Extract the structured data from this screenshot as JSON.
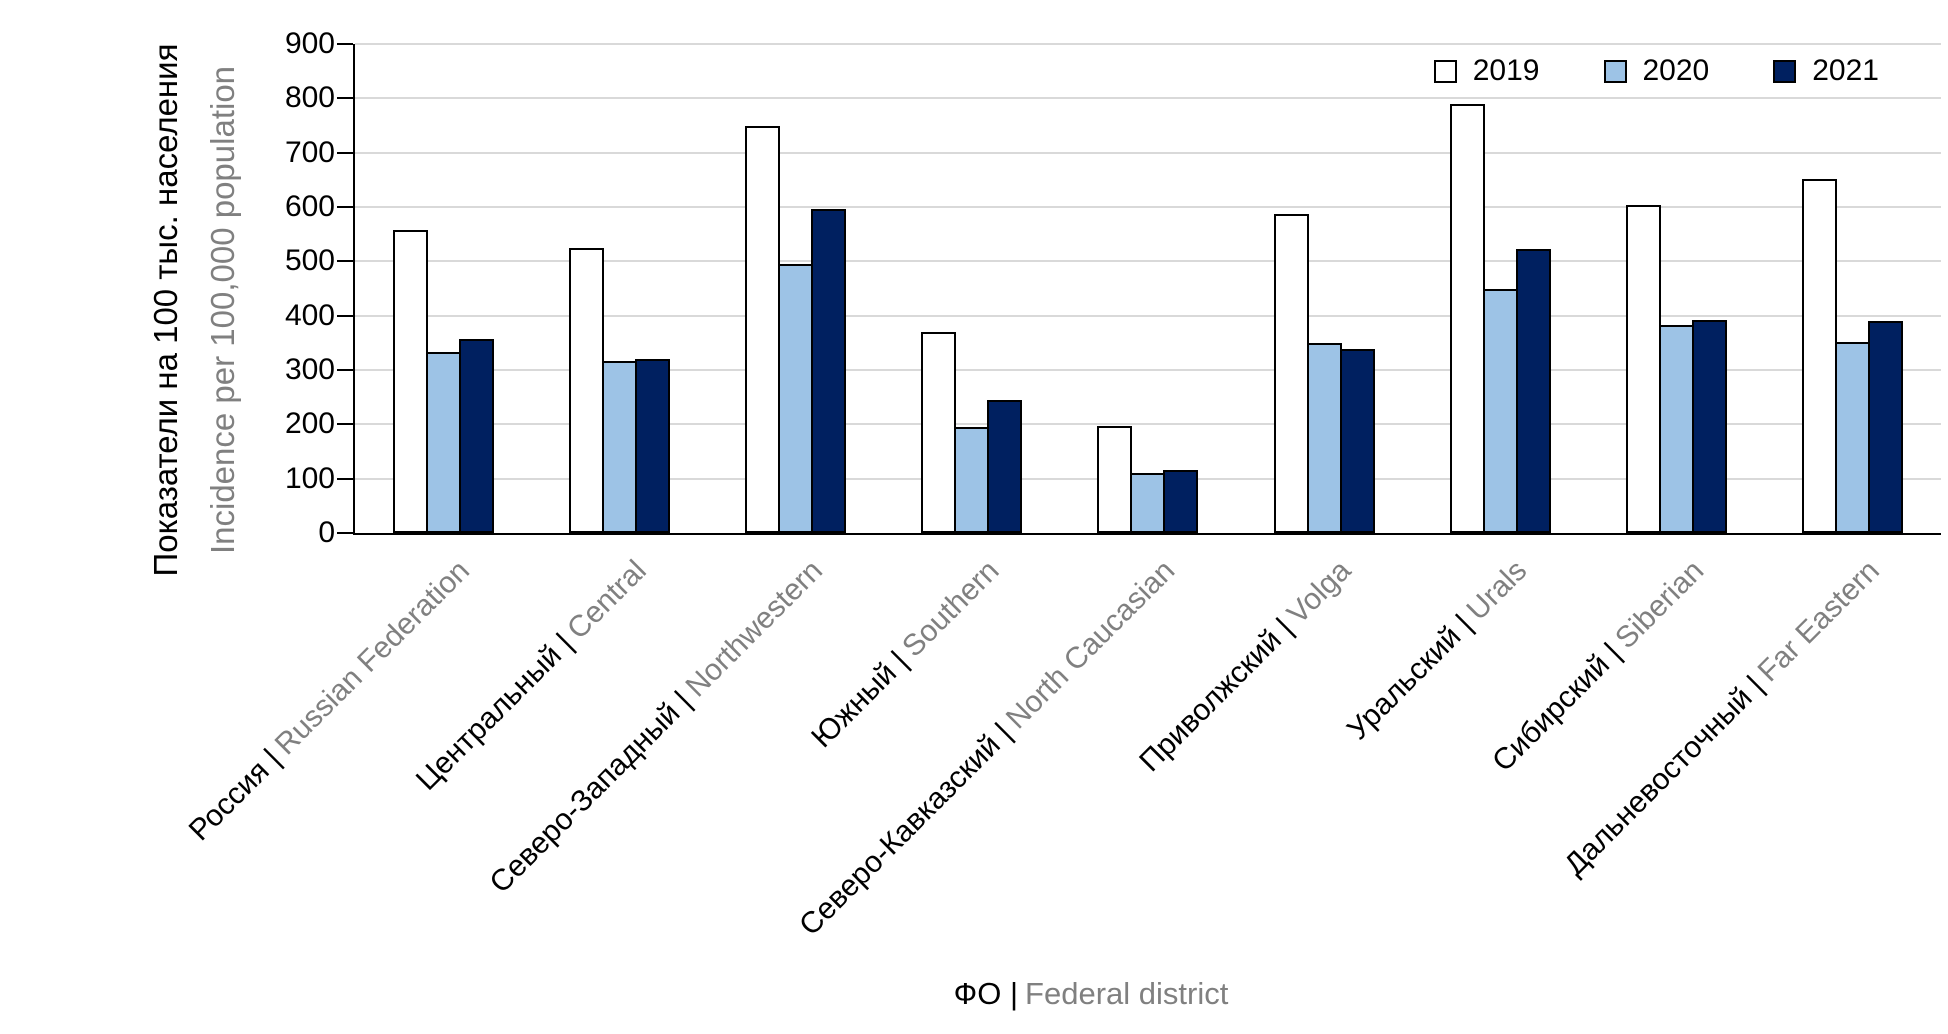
{
  "chart_data": {
    "type": "bar",
    "title": "",
    "categories": [
      {
        "ru": "Россия |",
        "en": "Russian Federation"
      },
      {
        "ru": "Центральный |",
        "en": "Central"
      },
      {
        "ru": "Северо-Западный |",
        "en": "Northwestern"
      },
      {
        "ru": "Южный |",
        "en": "Southern"
      },
      {
        "ru": "Северо-Кавказский |",
        "en": "North Caucasian"
      },
      {
        "ru": "Приволжский |",
        "en": "Volga"
      },
      {
        "ru": "Уральский |",
        "en": "Urals"
      },
      {
        "ru": "Сибирский |",
        "en": "Siberian"
      },
      {
        "ru": "Дальневосточный |",
        "en": "Far Eastern"
      }
    ],
    "series": [
      {
        "name": "2019",
        "fill": "#FFFFFF",
        "values": [
          558,
          525,
          750,
          370,
          197,
          588,
          790,
          604,
          651
        ]
      },
      {
        "name": "2020",
        "fill": "#9DC3E6",
        "values": [
          334,
          316,
          495,
          195,
          111,
          350,
          450,
          382,
          352
        ]
      },
      {
        "name": "2021",
        "fill": "#002060",
        "values": [
          358,
          321,
          597,
          245,
          116,
          338,
          523,
          392,
          391
        ]
      }
    ],
    "ylim": [
      0,
      900
    ],
    "ytick_step": 100,
    "ytick_labels": [
      "0",
      "100",
      "200",
      "300",
      "400",
      "500",
      "600",
      "700",
      "800",
      "900"
    ],
    "grid": true,
    "legend_position": "top-right-inside",
    "ylabel": {
      "ru": "Показатели на 100 тыс. населения",
      "en": "Incidence per 100,000 population"
    },
    "xlabel": {
      "ru": "ФО |",
      "en": "Federal district"
    }
  },
  "colors": {
    "series_2019_fill": "#FFFFFF",
    "series_2020_fill": "#9DC3E6",
    "series_2021_fill": "#002060",
    "bar_border": "#000000",
    "gridline": "#D9D9D9",
    "axis_line": "#000000",
    "text_primary": "#000000",
    "text_secondary": "#808080"
  }
}
